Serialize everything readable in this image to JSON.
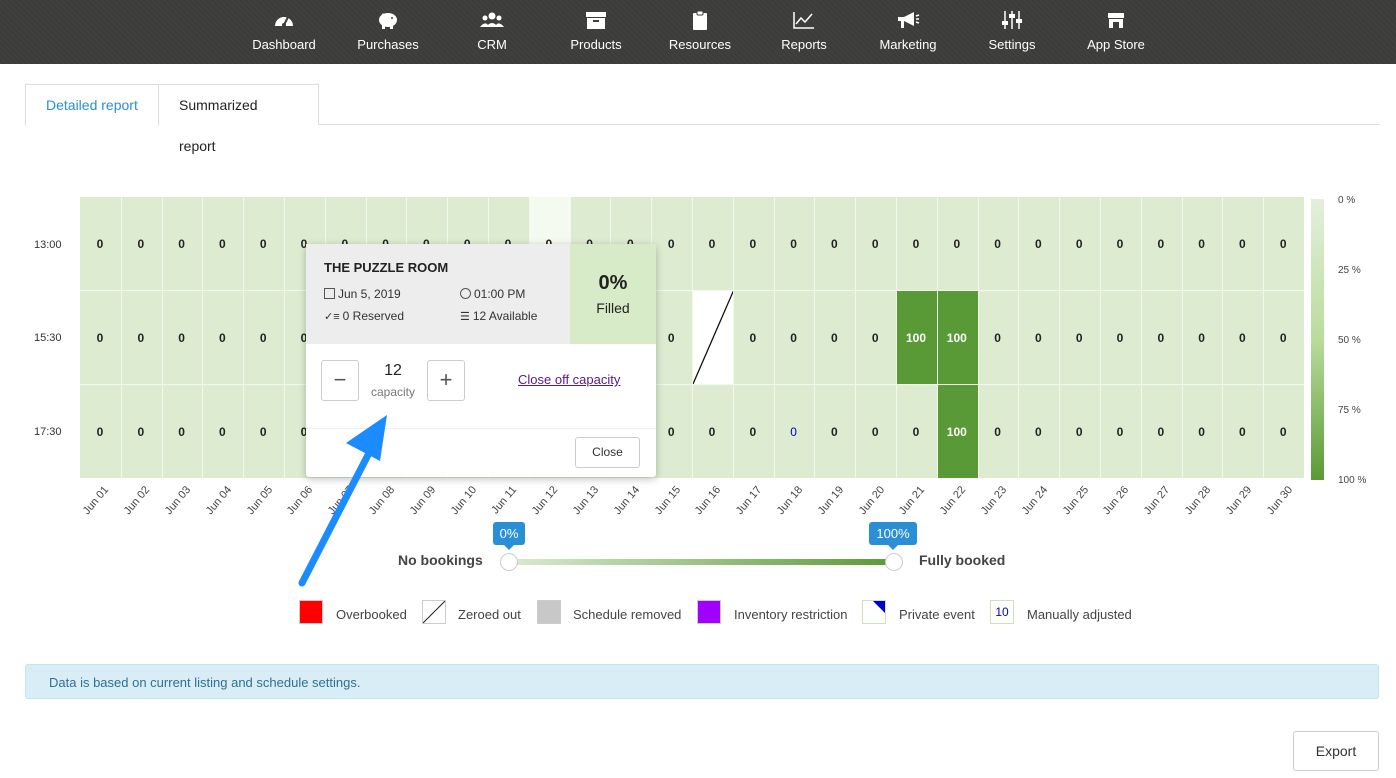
{
  "nav": {
    "items": [
      {
        "label": "Dashboard",
        "icon": "gauge-icon"
      },
      {
        "label": "Purchases",
        "icon": "piggy-bank-icon"
      },
      {
        "label": "CRM",
        "icon": "users-icon"
      },
      {
        "label": "Products",
        "icon": "box-icon"
      },
      {
        "label": "Resources",
        "icon": "clipboard-icon"
      },
      {
        "label": "Reports",
        "icon": "line-chart-icon"
      },
      {
        "label": "Marketing",
        "icon": "megaphone-icon"
      },
      {
        "label": "Settings",
        "icon": "sliders-icon"
      },
      {
        "label": "App Store",
        "icon": "store-icon"
      }
    ]
  },
  "tabs": {
    "detailed": "Detailed report",
    "summarized": "Summarized report"
  },
  "chart_data": {
    "type": "heatmap",
    "dates": [
      "Jun 01",
      "Jun 02",
      "Jun 03",
      "Jun 04",
      "Jun 05",
      "Jun 06",
      "Jun 07",
      "Jun 08",
      "Jun 09",
      "Jun 10",
      "Jun 11",
      "Jun 12",
      "Jun 13",
      "Jun 14",
      "Jun 15",
      "Jun 16",
      "Jun 17",
      "Jun 18",
      "Jun 19",
      "Jun 20",
      "Jun 21",
      "Jun 22",
      "Jun 23",
      "Jun 24",
      "Jun 25",
      "Jun 26",
      "Jun 27",
      "Jun 28",
      "Jun 29",
      "Jun 30"
    ],
    "times": [
      "13:00",
      "15:30",
      "17:30"
    ],
    "values": [
      [
        "0",
        "0",
        "0",
        "0",
        "0",
        "0",
        "0",
        "0",
        "0",
        "0",
        "0",
        "0",
        "0",
        "0",
        "0",
        "0",
        "0",
        "0",
        "0",
        "0",
        "0",
        "0",
        "0",
        "0",
        "0",
        "0",
        "0",
        "0",
        "0",
        "0"
      ],
      [
        "0",
        "0",
        "0",
        "0",
        "0",
        "0",
        "",
        "",
        "",
        "",
        "",
        "",
        "",
        "",
        "0",
        "",
        "0",
        "0",
        "0",
        "0",
        "100",
        "100",
        "0",
        "0",
        "0",
        "0",
        "0",
        "0",
        "0",
        "0"
      ],
      [
        "0",
        "0",
        "0",
        "0",
        "0",
        "0",
        "",
        "",
        "",
        "",
        "",
        "",
        "",
        "",
        "0",
        "0",
        "0",
        "0",
        "0",
        "0",
        "0",
        "100",
        "0",
        "0",
        "0",
        "0",
        "0",
        "0",
        "0",
        "0"
      ]
    ],
    "zeroed_out": [
      {
        "date": "Jun 16",
        "time": "15:30"
      }
    ],
    "manually_adjusted": [
      {
        "date": "Jun 18",
        "time": "17:30"
      }
    ],
    "removed": [
      {
        "date": "Jun 12",
        "time": "13:00"
      }
    ],
    "scale_labels": [
      "0 %",
      "25 %",
      "50 %",
      "75 %",
      "100 %"
    ],
    "colors": {
      "low": "#ddecd1",
      "high": "#5a9a36"
    }
  },
  "popup": {
    "title": "THE PUZZLE ROOM",
    "date": "Jun 5, 2019",
    "time": "01:00 PM",
    "reserved": "0 Reserved",
    "available": "12 Available",
    "filled_pct": "0%",
    "filled_label": "Filled",
    "capacity_value": "12",
    "capacity_label": "capacity",
    "close_off": "Close off capacity",
    "close": "Close"
  },
  "slider": {
    "min_label": "No bookings",
    "max_label": "Fully booked",
    "min_value": "0%",
    "max_value": "100%"
  },
  "legend": [
    {
      "label": "Overbooked",
      "color": "#ff0000"
    },
    {
      "label": "Zeroed out"
    },
    {
      "label": "Schedule removed",
      "color": "#c8c8c8"
    },
    {
      "label": "Inventory restriction",
      "color": "#a100ff"
    },
    {
      "label": "Private event"
    },
    {
      "label": "Manually adjusted",
      "sample": "10"
    }
  ],
  "info": "Data is based on current listing and schedule settings.",
  "export": "Export"
}
